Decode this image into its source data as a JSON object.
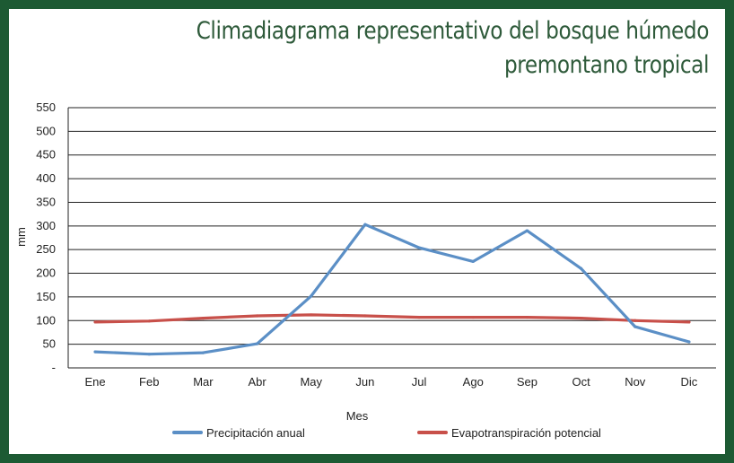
{
  "title_lines": [
    "Climadiagrama representativo del bosque húmedo",
    "premontano tropical"
  ],
  "colors": {
    "frame": "#1d5a33",
    "title": "#2e5a3a",
    "precip": "#5b8fc6",
    "evap": "#c8504a",
    "grid": "#222222"
  },
  "chart_data": {
    "type": "line",
    "title": "Climadiagrama representativo del bosque húmedo premontano tropical",
    "xlabel": "Mes",
    "ylabel": "mm",
    "ylim": [
      0,
      550
    ],
    "yticks": [
      0,
      50,
      100,
      150,
      200,
      250,
      300,
      350,
      400,
      450,
      500,
      550
    ],
    "ytick_labels": [
      "-",
      "50",
      "100",
      "150",
      "200",
      "250",
      "300",
      "350",
      "400",
      "450",
      "500",
      "550"
    ],
    "grid": true,
    "legend_position": "bottom",
    "categories": [
      "Ene",
      "Feb",
      "Mar",
      "Abr",
      "May",
      "Jun",
      "Jul",
      "Ago",
      "Sep",
      "Oct",
      "Nov",
      "Dic"
    ],
    "series": [
      {
        "name": "Precipitación anual",
        "color": "#5b8fc6",
        "values": [
          34,
          29,
          32,
          51,
          152,
          303,
          254,
          225,
          290,
          210,
          87,
          55
        ]
      },
      {
        "name": "Evapotranspiración potencial",
        "color": "#c8504a",
        "values": [
          97,
          99,
          105,
          110,
          112,
          110,
          107,
          107,
          107,
          105,
          100,
          97
        ]
      }
    ]
  }
}
